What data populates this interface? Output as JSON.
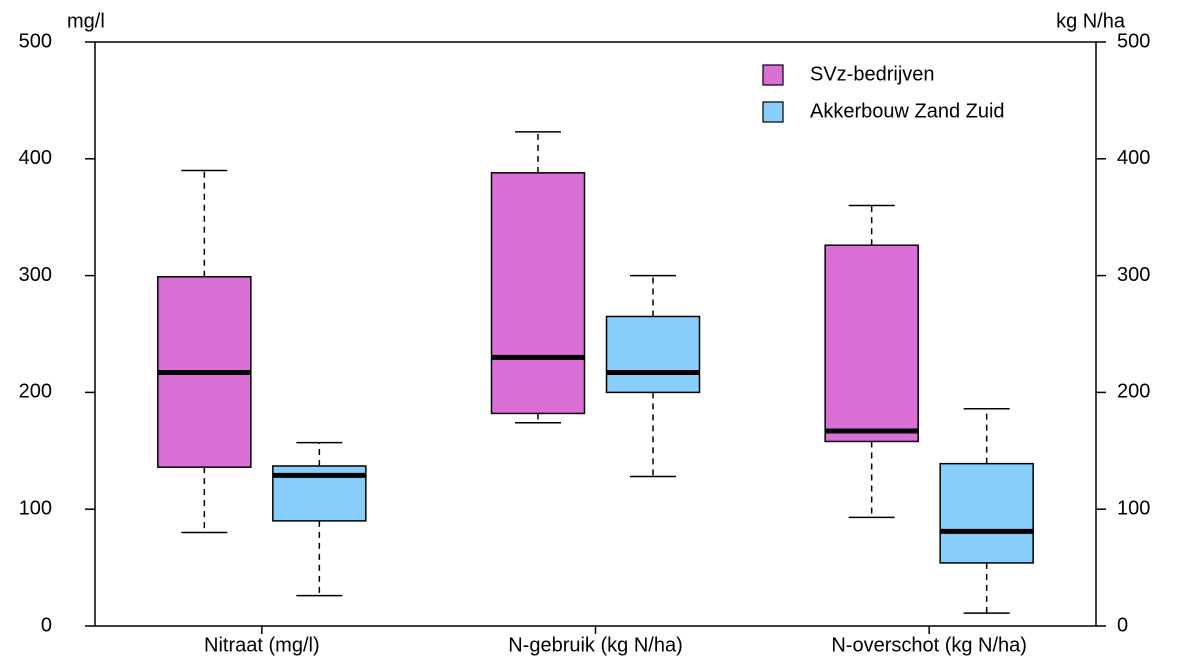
{
  "chart_data": {
    "type": "boxplot",
    "y_label": "mg/l",
    "y2_label": "kg N/ha",
    "categories": [
      "Nitraat (mg/l)",
      "N-gebruik (kg N/ha)",
      "N-overschot (kg N/ha)"
    ],
    "series": [
      {
        "name": "SVz-bedrijven",
        "color": "#da70d6",
        "min": [
          80,
          174,
          93
        ],
        "q1": [
          136,
          182,
          158
        ],
        "median": [
          217,
          230,
          167
        ],
        "q3": [
          299,
          388,
          326
        ],
        "max": [
          390,
          423,
          360
        ]
      },
      {
        "name": "Akkerbouw Zand Zuid",
        "color": "#87cefa",
        "min": [
          26,
          128,
          11
        ],
        "q1": [
          90,
          200,
          54
        ],
        "median": [
          129,
          217,
          81
        ],
        "q3": [
          137,
          265,
          139
        ],
        "max": [
          157,
          300,
          186
        ]
      }
    ],
    "ylim": [
      0,
      500
    ],
    "yticks": [
      0,
      100,
      200,
      300,
      400,
      500
    ],
    "y2lim": [
      0,
      500
    ],
    "y2ticks": [
      0,
      100,
      200,
      300,
      400,
      500
    ],
    "legend": "top-right"
  }
}
